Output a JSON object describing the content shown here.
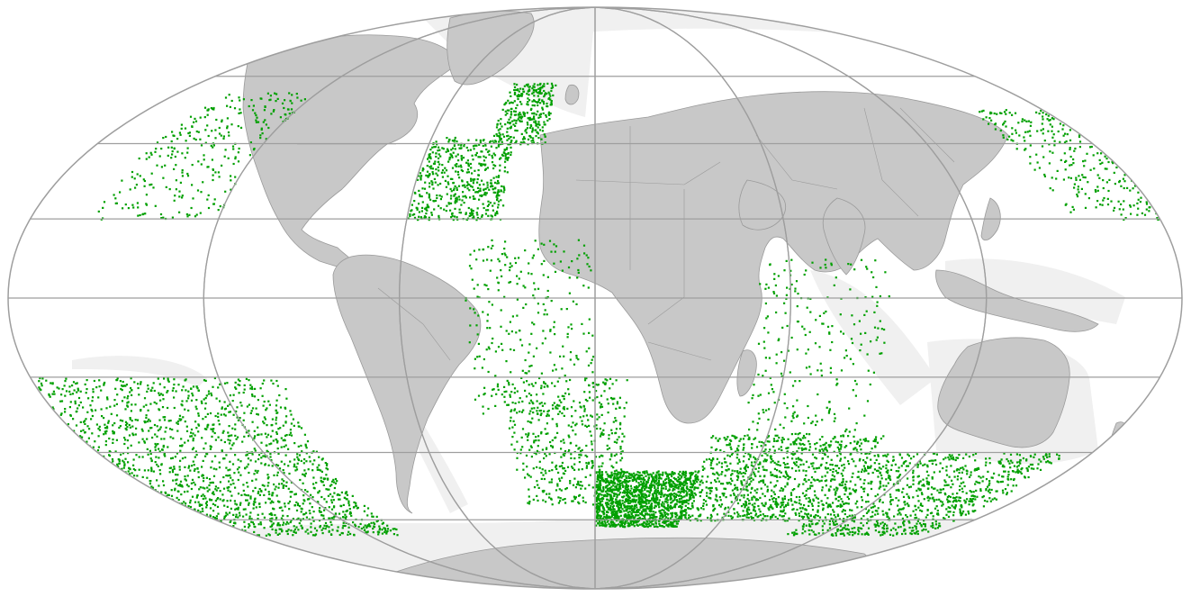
{
  "map": {
    "projection": "Mollweide",
    "colors": {
      "background": "#ffffff",
      "shelf_sea": "#f0f0f0",
      "land": "#c8c8c8",
      "land_border": "#9a9a9a",
      "graticule": "#9e9e9e",
      "observation": "#00a000"
    },
    "graticule": {
      "meridians_deg": [
        -120,
        -60,
        0,
        60,
        120,
        180
      ],
      "parallels_deg": [
        -60,
        -40,
        -20,
        0,
        20,
        40,
        60
      ]
    },
    "observation_clusters": [
      {
        "region": "north-atlantic-east",
        "density": "high"
      },
      {
        "region": "north-atlantic-west",
        "density": "high"
      },
      {
        "region": "north-pacific-east",
        "density": "medium"
      },
      {
        "region": "north-pacific-west",
        "density": "medium"
      },
      {
        "region": "tropical-atlantic",
        "density": "medium"
      },
      {
        "region": "indian-ocean-west",
        "density": "medium"
      },
      {
        "region": "south-pacific",
        "density": "high"
      },
      {
        "region": "south-atlantic",
        "density": "medium"
      },
      {
        "region": "southern-ocean-africa",
        "density": "very-high"
      },
      {
        "region": "southern-ocean-indian",
        "density": "high"
      },
      {
        "region": "southern-ocean-australia",
        "density": "high"
      }
    ]
  }
}
